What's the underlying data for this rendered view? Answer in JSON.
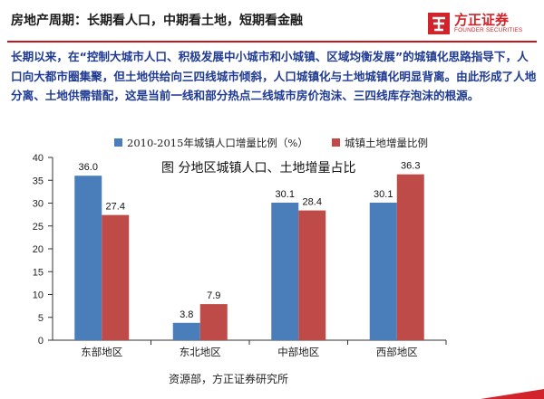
{
  "header": {
    "title": "房地产周期：长期看人口，中期看土地，短期看金融"
  },
  "logo": {
    "cn": "方正证券",
    "en": "FOUNDER SECURITIES",
    "color": "#d2232a"
  },
  "body_text": "长期以来，在“控制大城市人口、积极发展中小城市和小城镇、区域均衡发展”的城镇化思路指导下，人口向大都市圈集聚，但土地供给向三四线城市倾斜，人口城镇化与土地城镇化明显背离。由此形成了人地分离、土地供需错配，这是当前一线和部分热点二线城市房价泡沫、三四线库存泡沫的根源。",
  "source_text": "资源部，方正证券研究所",
  "chart_data": {
    "type": "bar",
    "title": "图   分地区城镇人口、土地增量占比",
    "categories": [
      "东部地区",
      "东北地区",
      "中部地区",
      "西部地区"
    ],
    "series": [
      {
        "name": "2010-2015年城镇人口增量比例（%）",
        "color": "#4a7ebb",
        "values": [
          36.0,
          3.8,
          30.1,
          30.1
        ]
      },
      {
        "name": "城镇土地增量比例",
        "color": "#be4b48",
        "values": [
          27.4,
          7.9,
          28.4,
          36.3
        ]
      }
    ],
    "ylim": [
      0,
      40
    ],
    "yticks": [
      0,
      5,
      10,
      15,
      20,
      25,
      30,
      35,
      40
    ],
    "grid": false,
    "legend": "top"
  }
}
